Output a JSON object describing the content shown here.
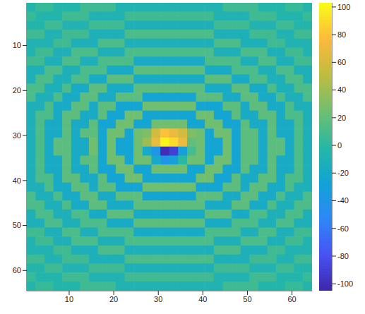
{
  "chart_data": {
    "type": "heatmap",
    "x": [
      1.5,
      3.5,
      5.5,
      7.5,
      9.5,
      11.5,
      13.5,
      15.5,
      17.5,
      19.5,
      21.5,
      23.5,
      25.5,
      27.5,
      29.5,
      31.5,
      33.5,
      35.5,
      37.5,
      39.5,
      41.5,
      43.5,
      45.5,
      47.5,
      49.5,
      51.5,
      53.5,
      55.5,
      57.5,
      59.5,
      61.5,
      63.5
    ],
    "y": [
      1.5,
      3.5,
      5.5,
      7.5,
      9.5,
      11.5,
      13.5,
      15.5,
      17.5,
      19.5,
      21.5,
      23.5,
      25.5,
      27.5,
      29.5,
      31.5,
      33.5,
      35.5,
      37.5,
      39.5,
      41.5,
      43.5,
      45.5,
      47.5,
      49.5,
      51.5,
      53.5,
      55.5,
      57.5,
      59.5,
      61.5,
      63.5
    ],
    "cells": [
      [
        -5,
        5,
        5,
        -5,
        -5,
        -5,
        8,
        8,
        8,
        8,
        -8,
        -8,
        -8,
        -8,
        -8,
        -8,
        -8,
        -8,
        -8,
        -8,
        -8,
        -8,
        8,
        8,
        8,
        8,
        -5,
        -5,
        -5,
        5,
        5,
        -5
      ],
      [
        5,
        -5,
        -5,
        -5,
        8,
        8,
        8,
        -8,
        -8,
        -8,
        -8,
        8,
        8,
        8,
        8,
        8,
        8,
        8,
        8,
        8,
        8,
        -8,
        -8,
        -8,
        -8,
        8,
        8,
        8,
        -5,
        -5,
        -5,
        5
      ],
      [
        -5,
        -5,
        8,
        8,
        -8,
        -8,
        -8,
        8,
        8,
        8,
        8,
        -12,
        -12,
        -12,
        -12,
        -12,
        -12,
        -12,
        -12,
        -12,
        -12,
        8,
        8,
        8,
        8,
        -8,
        -8,
        -8,
        8,
        8,
        -5,
        -5
      ],
      [
        8,
        8,
        -8,
        -8,
        8,
        8,
        8,
        -12,
        -12,
        -12,
        -12,
        12,
        12,
        12,
        12,
        12,
        12,
        12,
        12,
        12,
        12,
        -12,
        -12,
        -12,
        -12,
        8,
        8,
        8,
        -8,
        -8,
        8,
        8
      ],
      [
        -8,
        -8,
        -8,
        8,
        8,
        -12,
        -12,
        -12,
        12,
        12,
        12,
        -12,
        -12,
        -12,
        -12,
        -12,
        -12,
        -12,
        -12,
        -12,
        -12,
        12,
        12,
        12,
        -12,
        -12,
        -12,
        8,
        8,
        -8,
        -8,
        -8
      ],
      [
        -8,
        8,
        8,
        -12,
        -12,
        12,
        12,
        12,
        -12,
        -12,
        -12,
        12,
        12,
        12,
        12,
        12,
        12,
        12,
        12,
        12,
        12,
        -12,
        -12,
        -12,
        12,
        12,
        12,
        -12,
        -12,
        8,
        8,
        -8
      ],
      [
        8,
        8,
        -12,
        -12,
        12,
        12,
        -12,
        -12,
        12,
        12,
        12,
        12,
        -18,
        -18,
        -18,
        -18,
        -18,
        -18,
        -18,
        -18,
        12,
        12,
        12,
        12,
        -12,
        -12,
        12,
        12,
        -12,
        -12,
        8,
        8
      ],
      [
        -12,
        -12,
        12,
        12,
        -12,
        -12,
        12,
        12,
        12,
        -18,
        -18,
        -18,
        18,
        18,
        18,
        18,
        18,
        18,
        18,
        18,
        -18,
        -18,
        -18,
        12,
        12,
        12,
        -12,
        -12,
        12,
        12,
        -12,
        -12
      ],
      [
        -12,
        12,
        12,
        -12,
        -12,
        12,
        12,
        -18,
        -18,
        18,
        18,
        18,
        -18,
        -18,
        -18,
        -18,
        -18,
        -18,
        -18,
        -18,
        18,
        18,
        18,
        -18,
        -18,
        12,
        12,
        -12,
        -12,
        12,
        12,
        -12
      ],
      [
        12,
        12,
        -12,
        -12,
        12,
        -18,
        -18,
        18,
        18,
        -18,
        -18,
        -18,
        18,
        18,
        18,
        18,
        18,
        18,
        18,
        18,
        -18,
        -18,
        -18,
        18,
        18,
        -18,
        -18,
        12,
        -12,
        -12,
        12,
        12
      ],
      [
        12,
        -12,
        -12,
        12,
        -18,
        -18,
        18,
        18,
        -18,
        -18,
        18,
        18,
        18,
        -25,
        -25,
        -25,
        -25,
        -25,
        -25,
        18,
        18,
        18,
        -18,
        -18,
        18,
        18,
        -18,
        -18,
        12,
        -12,
        -12,
        12
      ],
      [
        -12,
        -12,
        12,
        -18,
        -18,
        18,
        18,
        -18,
        18,
        18,
        -25,
        -25,
        -25,
        25,
        25,
        25,
        25,
        25,
        25,
        -25,
        -25,
        -25,
        18,
        18,
        -18,
        18,
        18,
        -18,
        -18,
        12,
        -12,
        -12
      ],
      [
        -12,
        12,
        12,
        -18,
        18,
        18,
        -18,
        -18,
        18,
        -25,
        -25,
        25,
        25,
        -25,
        -25,
        -25,
        -25,
        -25,
        -25,
        25,
        25,
        -25,
        -25,
        18,
        -18,
        -18,
        18,
        18,
        -18,
        12,
        12,
        -12
      ],
      [
        -12,
        12,
        -18,
        -18,
        18,
        -18,
        -18,
        18,
        -25,
        -25,
        25,
        25,
        -25,
        -25,
        25,
        25,
        25,
        25,
        -25,
        -25,
        25,
        25,
        -25,
        -25,
        18,
        -18,
        -18,
        18,
        -18,
        -18,
        12,
        -12
      ],
      [
        -12,
        12,
        -18,
        -18,
        18,
        -18,
        18,
        18,
        -25,
        25,
        25,
        -25,
        25,
        30,
        60,
        80,
        70,
        60,
        30,
        25,
        -25,
        25,
        25,
        -25,
        18,
        18,
        -18,
        18,
        -18,
        -18,
        12,
        -12
      ],
      [
        -12,
        12,
        -18,
        18,
        18,
        -18,
        -18,
        25,
        -25,
        25,
        -25,
        -25,
        25,
        40,
        70,
        100,
        90,
        70,
        20,
        25,
        -25,
        -25,
        25,
        -25,
        18,
        18,
        -18,
        18,
        18,
        -18,
        12,
        -12
      ],
      [
        -12,
        12,
        -18,
        18,
        18,
        -18,
        -18,
        25,
        -25,
        25,
        -25,
        -25,
        25,
        -20,
        -40,
        -100,
        -90,
        -30,
        10,
        25,
        -25,
        -25,
        25,
        -25,
        18,
        18,
        -18,
        18,
        18,
        -18,
        12,
        -12
      ],
      [
        -12,
        12,
        -18,
        -18,
        18,
        -18,
        18,
        18,
        -25,
        25,
        25,
        -25,
        25,
        25,
        -20,
        -40,
        -30,
        0,
        25,
        25,
        -25,
        25,
        25,
        -25,
        18,
        18,
        -18,
        18,
        -18,
        -18,
        12,
        -12
      ],
      [
        -12,
        12,
        -18,
        -18,
        18,
        -18,
        -18,
        18,
        -25,
        -25,
        25,
        25,
        -25,
        -25,
        25,
        25,
        25,
        25,
        -25,
        -25,
        25,
        25,
        -25,
        -25,
        18,
        -18,
        -18,
        18,
        -18,
        -18,
        12,
        -12
      ],
      [
        -12,
        12,
        12,
        -18,
        18,
        18,
        -18,
        -18,
        18,
        -25,
        -25,
        25,
        25,
        -25,
        -25,
        -25,
        -25,
        -25,
        -25,
        25,
        25,
        -25,
        -25,
        18,
        -18,
        -18,
        18,
        18,
        -18,
        12,
        12,
        -12
      ],
      [
        -12,
        -12,
        12,
        -18,
        -18,
        18,
        18,
        -18,
        18,
        18,
        -25,
        -25,
        -25,
        25,
        25,
        25,
        25,
        25,
        25,
        -25,
        -25,
        -25,
        18,
        18,
        -18,
        18,
        18,
        -18,
        -18,
        12,
        -12,
        -12
      ],
      [
        12,
        -12,
        -12,
        12,
        -18,
        -18,
        18,
        18,
        -18,
        -18,
        18,
        18,
        18,
        -25,
        -25,
        -25,
        -25,
        -25,
        -25,
        18,
        18,
        18,
        -18,
        -18,
        18,
        18,
        -18,
        -18,
        12,
        -12,
        -12,
        12
      ],
      [
        12,
        12,
        -12,
        -12,
        12,
        -18,
        -18,
        18,
        18,
        -18,
        -18,
        -18,
        18,
        18,
        18,
        18,
        18,
        18,
        18,
        18,
        -18,
        -18,
        -18,
        18,
        18,
        -18,
        -18,
        12,
        -12,
        -12,
        12,
        12
      ],
      [
        -12,
        12,
        12,
        -12,
        -12,
        12,
        12,
        -18,
        -18,
        18,
        18,
        18,
        -18,
        -18,
        -18,
        -18,
        -18,
        -18,
        -18,
        -18,
        18,
        18,
        18,
        -18,
        -18,
        12,
        12,
        -12,
        -12,
        12,
        12,
        -12
      ],
      [
        -12,
        -12,
        12,
        12,
        -12,
        -12,
        12,
        12,
        12,
        -18,
        -18,
        -18,
        18,
        18,
        18,
        18,
        18,
        18,
        18,
        18,
        -18,
        -18,
        -18,
        12,
        12,
        12,
        -12,
        -12,
        12,
        12,
        -12,
        -12
      ],
      [
        8,
        8,
        -12,
        -12,
        12,
        12,
        -12,
        -12,
        12,
        12,
        12,
        12,
        -18,
        -18,
        -18,
        -18,
        -18,
        -18,
        -18,
        -18,
        12,
        12,
        12,
        12,
        -12,
        -12,
        12,
        12,
        -12,
        -12,
        8,
        8
      ],
      [
        -8,
        8,
        8,
        -12,
        -12,
        12,
        12,
        12,
        -12,
        -12,
        -12,
        12,
        12,
        12,
        12,
        12,
        12,
        12,
        12,
        12,
        12,
        -12,
        -12,
        -12,
        12,
        12,
        12,
        -12,
        -12,
        8,
        8,
        -8
      ],
      [
        -8,
        -8,
        -8,
        8,
        8,
        -12,
        -12,
        -12,
        12,
        12,
        12,
        -12,
        -12,
        -12,
        -12,
        -12,
        -12,
        -12,
        -12,
        -12,
        -12,
        12,
        12,
        12,
        -12,
        -12,
        -12,
        8,
        8,
        -8,
        -8,
        -8
      ],
      [
        8,
        8,
        -8,
        -8,
        8,
        8,
        8,
        -12,
        -12,
        -12,
        -12,
        12,
        12,
        12,
        12,
        12,
        12,
        12,
        12,
        12,
        12,
        -12,
        -12,
        -12,
        -12,
        8,
        8,
        8,
        -8,
        -8,
        8,
        8
      ],
      [
        -5,
        -5,
        8,
        8,
        -8,
        -8,
        -8,
        8,
        8,
        8,
        8,
        -12,
        -12,
        -12,
        -12,
        -12,
        -12,
        -12,
        -12,
        -12,
        -12,
        8,
        8,
        8,
        8,
        -8,
        -8,
        -8,
        8,
        8,
        -5,
        -5
      ],
      [
        5,
        -5,
        -5,
        -5,
        8,
        8,
        8,
        -8,
        -8,
        -8,
        -8,
        8,
        8,
        8,
        8,
        8,
        8,
        8,
        8,
        8,
        8,
        -8,
        -8,
        -8,
        -8,
        8,
        8,
        8,
        -5,
        -5,
        -5,
        5
      ],
      [
        -5,
        5,
        5,
        -5,
        -5,
        -5,
        8,
        8,
        8,
        8,
        -8,
        -8,
        -8,
        -8,
        -8,
        -8,
        -8,
        -8,
        -8,
        -8,
        -8,
        -8,
        8,
        8,
        8,
        8,
        -5,
        -5,
        -5,
        5,
        5,
        -5
      ]
    ],
    "xlim": [
      0.5,
      64.5
    ],
    "ylim": [
      64.5,
      0.5
    ],
    "xticks": [
      10,
      20,
      30,
      40,
      50,
      60
    ],
    "yticks": [
      10,
      20,
      30,
      40,
      50,
      60
    ],
    "clim": [
      -105,
      103
    ],
    "cticks": [
      -100,
      -80,
      -60,
      -40,
      -20,
      0,
      20,
      40,
      60,
      80,
      100
    ]
  }
}
